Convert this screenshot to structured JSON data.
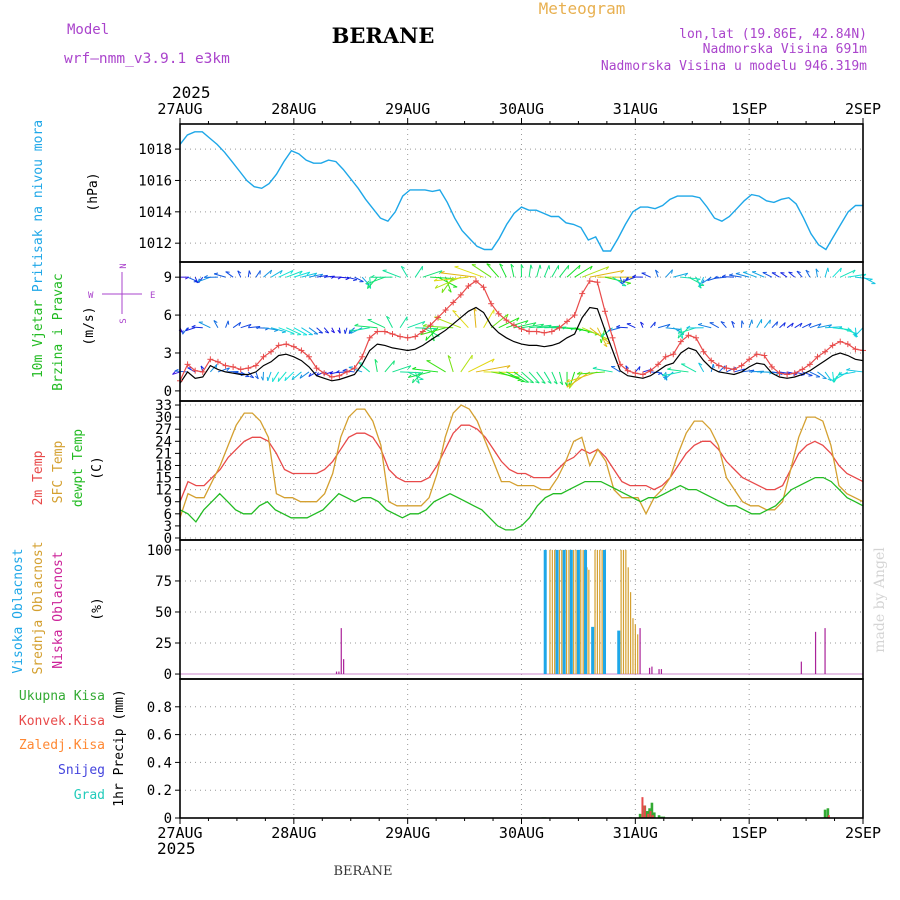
{
  "header": {
    "model_label": "Model",
    "model_name": "wrf–nmm_v3.9.1  e3km",
    "station": "BERANE",
    "product": "Meteogram",
    "coords": "lon,lat (19.86E, 42.84N)",
    "elevation": "Nadmorska Visina 691m",
    "model_elevation": "Nadmorska Visina u modelu 946.319m",
    "year": "2025",
    "footer_station": "BERANE",
    "watermark": "made by Angel"
  },
  "colors": {
    "pressure": "#1ea7e8",
    "wind_speed": "#000000",
    "gust": "#e84a4a",
    "temp_2m": "#e84a4a",
    "sfc_temp": "#d4a030",
    "dewpoint": "#22bb22",
    "high_cloud": "#1ea7e8",
    "mid_cloud": "#d4a030",
    "low_cloud": "#aa2299",
    "total_precip": "#33aa33",
    "conv_precip": "#e84a4a",
    "frozen_precip": "#ff8833",
    "snow": "#4444dd",
    "hail": "#22ccbb",
    "compass": "#aa44cc",
    "grid": "#999999"
  },
  "chart_data": [
    {
      "type": "line",
      "name": "pressure",
      "ylabel": "(hPa)",
      "side_labels": [
        "Pritisak na nivou mora"
      ],
      "x_ticks": [
        "27AUG",
        "28AUG",
        "29AUG",
        "30AUG",
        "31AUG",
        "1SEP",
        "2SEP"
      ],
      "x_range_hours": [
        0,
        144
      ],
      "ylim": [
        1010.8,
        1019.6
      ],
      "y_ticks": [
        1012,
        1014,
        1016,
        1018
      ],
      "series": [
        {
          "values": [
            1018.3,
            1018.9,
            1019.1,
            1019.1,
            1018.7,
            1018.3,
            1017.8,
            1017.2,
            1016.6,
            1016.0,
            1015.6,
            1015.5,
            1015.8,
            1016.4,
            1017.2,
            1017.9,
            1017.7,
            1017.3,
            1017.1,
            1017.1,
            1017.3,
            1017.2,
            1016.7,
            1016.1,
            1015.5,
            1014.8,
            1014.2,
            1013.6,
            1013.4,
            1014.0,
            1015.0,
            1015.4,
            1015.4,
            1015.4,
            1015.3,
            1015.4,
            1014.6,
            1013.6,
            1012.8,
            1012.3,
            1011.8,
            1011.6,
            1011.6,
            1012.3,
            1013.2,
            1013.9,
            1014.3,
            1014.1,
            1014.1,
            1013.9,
            1013.7,
            1013.7,
            1013.3,
            1013.2,
            1013.0,
            1012.2,
            1012.4,
            1011.5,
            1011.5,
            1012.3,
            1013.2,
            1014.0,
            1014.3,
            1014.3,
            1014.2,
            1014.4,
            1014.8,
            1015.0,
            1015.0,
            1015.0,
            1014.9,
            1014.3,
            1013.6,
            1013.4,
            1013.7,
            1014.2,
            1014.7,
            1015.1,
            1015.0,
            1014.7,
            1014.6,
            1014.8,
            1014.9,
            1014.5,
            1013.6,
            1012.6,
            1011.9,
            1011.6,
            1012.4,
            1013.2,
            1014.0,
            1014.4,
            1014.4
          ]
        }
      ]
    },
    {
      "type": "line",
      "name": "wind",
      "ylabel": "(m/s)",
      "side_labels": [
        "10m Vjetar",
        "Brzina i Pravac"
      ],
      "ylim": [
        -0.8,
        10.2
      ],
      "y_ticks": [
        0,
        3,
        6,
        9
      ],
      "compass": {
        "north": "N",
        "south": "S",
        "west": "W",
        "east": "E"
      },
      "arrow_rows_ms": [
        9,
        5,
        1.5
      ],
      "series": [
        {
          "name": "wind_speed",
          "values": [
            0.6,
            1.5,
            1.0,
            1.1,
            2.0,
            1.7,
            1.5,
            1.4,
            1.3,
            1.3,
            1.5,
            2.0,
            2.3,
            2.8,
            2.9,
            2.7,
            2.4,
            1.9,
            1.2,
            1.0,
            0.8,
            0.9,
            1.1,
            1.3,
            2.1,
            3.2,
            3.7,
            3.6,
            3.4,
            3.3,
            3.2,
            3.3,
            3.6,
            4.0,
            4.4,
            4.8,
            5.3,
            5.8,
            6.3,
            6.6,
            6.2,
            5.2,
            4.6,
            4.2,
            3.9,
            3.7,
            3.6,
            3.6,
            3.5,
            3.6,
            3.8,
            4.2,
            4.5,
            5.8,
            6.6,
            6.5,
            4.8,
            3.2,
            1.6,
            1.2,
            1.1,
            1.0,
            1.2,
            1.6,
            2.0,
            2.2,
            3.0,
            3.4,
            3.2,
            2.4,
            1.8,
            1.5,
            1.4,
            1.3,
            1.5,
            1.9,
            2.2,
            2.1,
            1.4,
            1.1,
            1.0,
            1.1,
            1.3,
            1.6,
            2.0,
            2.4,
            2.8,
            3.0,
            2.8,
            2.5,
            2.4
          ]
        },
        {
          "name": "gust",
          "values": [
            0.8,
            2.1,
            1.6,
            1.5,
            2.5,
            2.3,
            2.0,
            1.9,
            1.7,
            1.8,
            2.0,
            2.7,
            3.1,
            3.6,
            3.7,
            3.5,
            3.2,
            2.7,
            1.8,
            1.4,
            1.1,
            1.2,
            1.5,
            1.8,
            2.7,
            4.2,
            4.7,
            4.7,
            4.5,
            4.3,
            4.2,
            4.3,
            4.7,
            5.2,
            5.8,
            6.4,
            7.0,
            7.6,
            8.3,
            8.7,
            8.2,
            6.9,
            6.1,
            5.6,
            5.2,
            4.9,
            4.7,
            4.7,
            4.6,
            4.7,
            5.0,
            5.5,
            6.0,
            7.7,
            8.7,
            8.6,
            6.3,
            4.2,
            2.1,
            1.6,
            1.4,
            1.3,
            1.6,
            2.1,
            2.7,
            2.9,
            3.9,
            4.4,
            4.2,
            3.1,
            2.4,
            2.0,
            1.8,
            1.7,
            2.0,
            2.5,
            2.9,
            2.8,
            1.9,
            1.4,
            1.3,
            1.4,
            1.7,
            2.1,
            2.7,
            3.1,
            3.6,
            3.9,
            3.7,
            3.3,
            3.2
          ]
        }
      ]
    },
    {
      "type": "line",
      "name": "temperature",
      "ylabel": "(C)",
      "side_labels": [
        "2m Temp",
        "SFC Temp",
        "dewpt Temp"
      ],
      "ylim": [
        -0.5,
        34
      ],
      "y_ticks": [
        0,
        3,
        6,
        9,
        12,
        15,
        18,
        21,
        24,
        27,
        30,
        33
      ],
      "series": [
        {
          "name": "2m Temp",
          "values": [
            9,
            14,
            13,
            13,
            15,
            17,
            20,
            22,
            24,
            25,
            25,
            24,
            21,
            17,
            16,
            16,
            16,
            16,
            17,
            19,
            22,
            25,
            26,
            26,
            25,
            22,
            17,
            15,
            14,
            14,
            14,
            15,
            18,
            22,
            26,
            28,
            28,
            27,
            25,
            22,
            19,
            17,
            16,
            16,
            15,
            15,
            15,
            17,
            19,
            20,
            22,
            21,
            22,
            20,
            17,
            14,
            13,
            13,
            13,
            12,
            13,
            15,
            18,
            21,
            23,
            24,
            24,
            22,
            19,
            17,
            15,
            14,
            13,
            12,
            12,
            13,
            17,
            21,
            23,
            24,
            23,
            21,
            18,
            16,
            15,
            14
          ]
        },
        {
          "name": "SFC Temp",
          "values": [
            5,
            11,
            10,
            10,
            14,
            18,
            23,
            28,
            31,
            31,
            29,
            25,
            11,
            10,
            10,
            9,
            9,
            9,
            11,
            16,
            25,
            30,
            32,
            32,
            29,
            23,
            9,
            8,
            8,
            8,
            8,
            10,
            16,
            25,
            31,
            33,
            32,
            29,
            24,
            19,
            14,
            14,
            13,
            13,
            13,
            12,
            12,
            15,
            19,
            24,
            25,
            18,
            22,
            19,
            12,
            10,
            10,
            10,
            6,
            10,
            12,
            15,
            21,
            26,
            29,
            29,
            27,
            23,
            15,
            12,
            9,
            8,
            8,
            7,
            7,
            9,
            17,
            25,
            30,
            30,
            29,
            23,
            13,
            11,
            10,
            9
          ]
        },
        {
          "name": "dewpt Temp",
          "values": [
            7,
            6,
            4,
            7,
            9,
            11,
            9,
            7,
            6,
            6,
            8,
            9,
            7,
            6,
            5,
            5,
            5,
            6,
            7,
            9,
            11,
            10,
            9,
            10,
            10,
            9,
            7,
            6,
            5,
            6,
            6,
            7,
            9,
            10,
            11,
            10,
            9,
            8,
            7,
            5,
            3,
            2,
            2,
            3,
            5,
            8,
            10,
            11,
            11,
            12,
            13,
            14,
            14,
            14,
            13,
            12,
            11,
            10,
            9,
            10,
            10,
            11,
            12,
            13,
            12,
            12,
            11,
            10,
            9,
            8,
            8,
            7,
            6,
            6,
            7,
            8,
            10,
            12,
            13,
            14,
            15,
            15,
            14,
            12,
            10,
            9,
            8
          ]
        }
      ]
    },
    {
      "type": "bar",
      "name": "clouds",
      "ylabel": "(%)",
      "side_labels": [
        "Visoka Oblacnost",
        "Srednja Oblacnost",
        "Niska Oblacnost"
      ],
      "ylim": [
        -4,
        108
      ],
      "y_ticks": [
        0,
        25,
        50,
        75,
        100
      ],
      "high_cloud": [
        [
          77,
          100
        ],
        [
          79.5,
          100
        ],
        [
          81,
          100
        ],
        [
          82.5,
          100
        ],
        [
          84,
          100
        ],
        [
          85.5,
          100
        ],
        [
          87,
          38
        ],
        [
          89.5,
          100
        ],
        [
          92.5,
          35
        ]
      ],
      "mid_cloud": [
        [
          78,
          100
        ],
        [
          78.5,
          100
        ],
        [
          79,
          100
        ],
        [
          80,
          100
        ],
        [
          80.5,
          100
        ],
        [
          81.5,
          100
        ],
        [
          82,
          100
        ],
        [
          83,
          100
        ],
        [
          83.5,
          100
        ],
        [
          84.5,
          100
        ],
        [
          85,
          100
        ],
        [
          85.3,
          86
        ],
        [
          85.8,
          86
        ],
        [
          86.2,
          84
        ],
        [
          87.5,
          100
        ],
        [
          88,
          100
        ],
        [
          88.5,
          100
        ],
        [
          89,
          100
        ],
        [
          93,
          100
        ],
        [
          93.5,
          100
        ],
        [
          94,
          100
        ],
        [
          94.5,
          86
        ],
        [
          95,
          66
        ],
        [
          95.5,
          45
        ],
        [
          96,
          40
        ],
        [
          96.5,
          32
        ]
      ],
      "low_cloud": [
        [
          33,
          2
        ],
        [
          33.5,
          2
        ],
        [
          34,
          37
        ],
        [
          34.5,
          12
        ],
        [
          97,
          37
        ],
        [
          99,
          5
        ],
        [
          99.5,
          6
        ],
        [
          101,
          4
        ],
        [
          101.5,
          4
        ],
        [
          131,
          10
        ],
        [
          134,
          34
        ],
        [
          136,
          37
        ]
      ]
    },
    {
      "type": "bar",
      "name": "precipitation",
      "ylabel": "1hr Precip (mm)",
      "side_labels": [
        "Ukupna Kisa",
        "Konvek.Kisa",
        "Zaledj.Kisa",
        "Snijeg",
        "Grad"
      ],
      "ylim": [
        0,
        1
      ],
      "y_ticks": [
        0,
        0.2,
        0.4,
        0.6,
        0.8
      ],
      "x_ticks_bottom": [
        "27AUG",
        "28AUG",
        "29AUG",
        "30AUG",
        "31AUG",
        "1SEP",
        "2SEP"
      ],
      "total_precip": [
        [
          76.5,
          0.005
        ],
        [
          77,
          0.005
        ],
        [
          95,
          0.005
        ],
        [
          97,
          0.03
        ],
        [
          98,
          0.09
        ],
        [
          98.5,
          0.05
        ],
        [
          99,
          0.07
        ],
        [
          99.5,
          0.11
        ],
        [
          100,
          0.04
        ],
        [
          101,
          0.02
        ],
        [
          101.5,
          0.01
        ],
        [
          102,
          0.01
        ],
        [
          136,
          0.06
        ],
        [
          136.6,
          0.07
        ]
      ],
      "conv_precip": [
        [
          97.5,
          0.15
        ],
        [
          98,
          0.09
        ],
        [
          98.7,
          0.03
        ],
        [
          99.2,
          0.05
        ],
        [
          99.7,
          0.02
        ],
        [
          136.8,
          0.02
        ]
      ]
    }
  ]
}
